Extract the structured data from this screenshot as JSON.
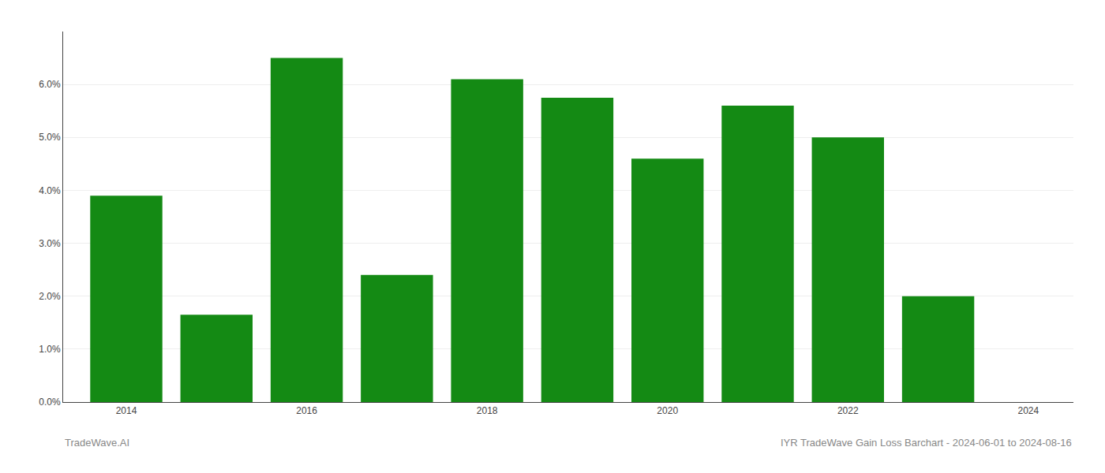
{
  "chart_data": {
    "type": "bar",
    "x": [
      2014,
      2015,
      2016,
      2017,
      2018,
      2019,
      2020,
      2021,
      2022,
      2023
    ],
    "values": [
      0.039,
      0.0165,
      0.065,
      0.024,
      0.061,
      0.0575,
      0.046,
      0.056,
      0.05,
      0.02
    ],
    "color": "#148a14",
    "xlim": [
      2013.3,
      2024.5
    ],
    "xticks": [
      2014,
      2016,
      2018,
      2020,
      2022,
      2024
    ],
    "ylim": [
      0,
      0.07
    ],
    "yticks": [
      {
        "value": 0.0,
        "label": "0.0%"
      },
      {
        "value": 0.01,
        "label": "1.0%"
      },
      {
        "value": 0.02,
        "label": "2.0%"
      },
      {
        "value": 0.03,
        "label": "3.0%"
      },
      {
        "value": 0.04,
        "label": "4.0%"
      },
      {
        "value": 0.05,
        "label": "5.0%"
      },
      {
        "value": 0.06,
        "label": "6.0%"
      }
    ],
    "grid": true,
    "annotations": [
      "TradeWave.AI",
      "IYR TradeWave Gain Loss Barchart - 2024-06-01 to 2024-08-16"
    ]
  }
}
